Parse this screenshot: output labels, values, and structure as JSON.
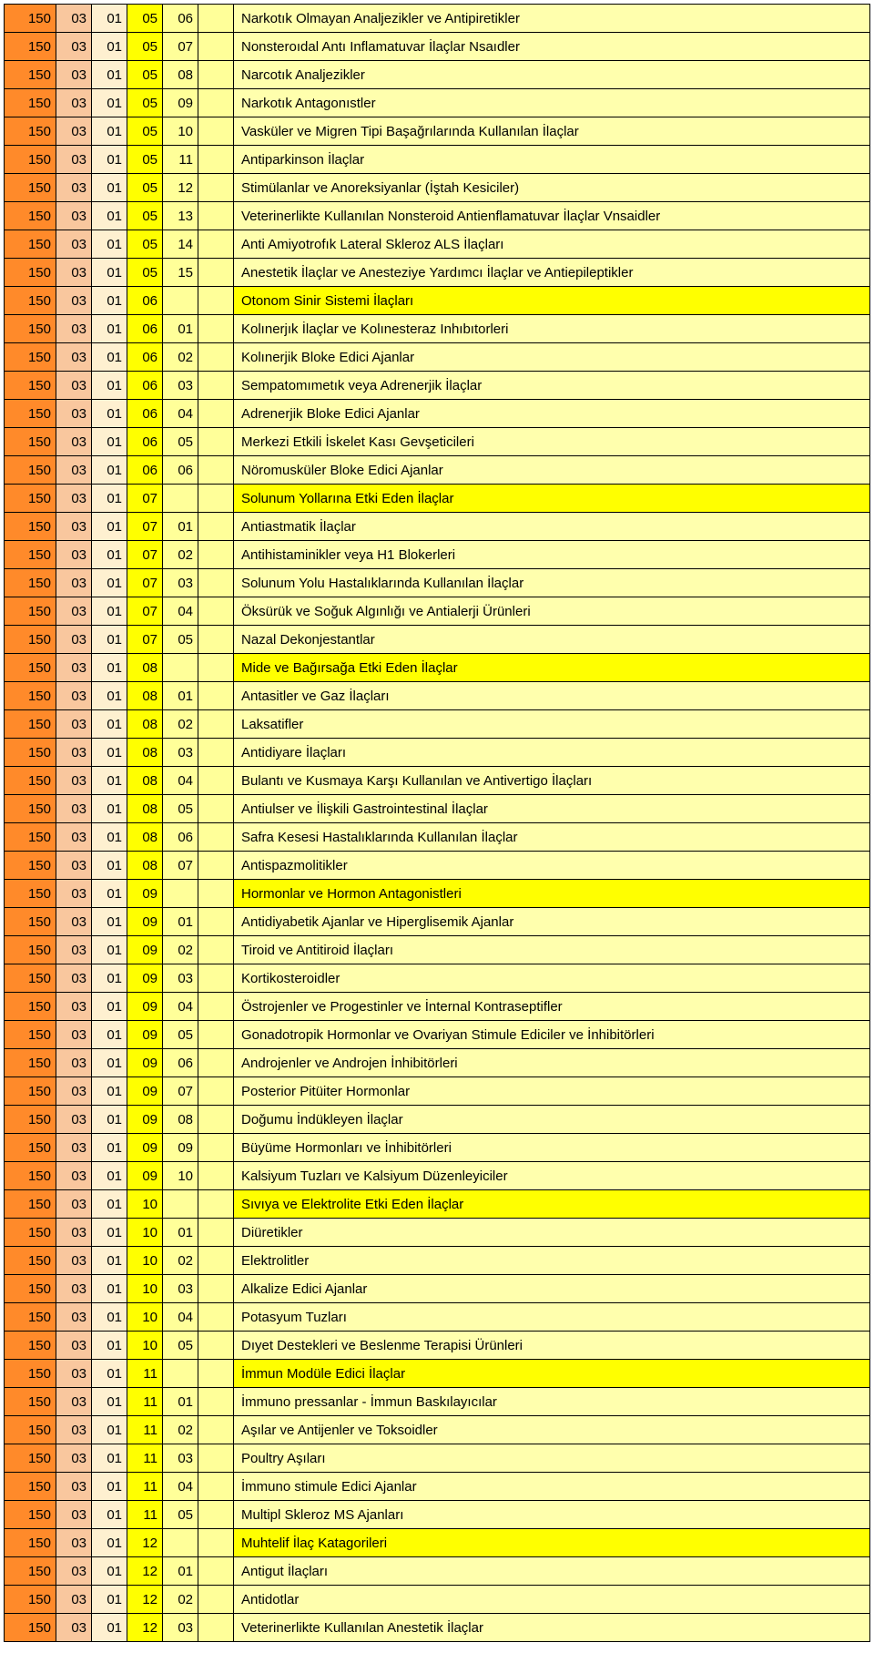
{
  "colors": {
    "c1": "#ff8a2a",
    "c2": "#f9c79e",
    "c3": "#fef0d0",
    "c4": "#ffff00",
    "c5": "#ffff99",
    "c6": "#ffff99",
    "c7": "#ffffad",
    "c7hdr": "#ffff00"
  },
  "rows": [
    {
      "a": "150",
      "b": "03",
      "c": "01",
      "d": "05",
      "e": "06",
      "f": "",
      "g": "Narkotık Olmayan Analjezikler ve Antipiretikler",
      "hdr": false
    },
    {
      "a": "150",
      "b": "03",
      "c": "01",
      "d": "05",
      "e": "07",
      "f": "",
      "g": "Nonsteroıdal Antı Inflamatuvar İlaçlar Nsaıdler",
      "hdr": false
    },
    {
      "a": "150",
      "b": "03",
      "c": "01",
      "d": "05",
      "e": "08",
      "f": "",
      "g": "Narcotık Analjezikler",
      "hdr": false
    },
    {
      "a": "150",
      "b": "03",
      "c": "01",
      "d": "05",
      "e": "09",
      "f": "",
      "g": "Narkotık Antagonıstler",
      "hdr": false
    },
    {
      "a": "150",
      "b": "03",
      "c": "01",
      "d": "05",
      "e": "10",
      "f": "",
      "g": "Vasküler ve Migren Tipi Başağrılarında Kullanılan İlaçlar",
      "hdr": false
    },
    {
      "a": "150",
      "b": "03",
      "c": "01",
      "d": "05",
      "e": "11",
      "f": "",
      "g": "Antiparkinson İlaçlar",
      "hdr": false
    },
    {
      "a": "150",
      "b": "03",
      "c": "01",
      "d": "05",
      "e": "12",
      "f": "",
      "g": "Stimülanlar ve Anoreksiyanlar (İştah Kesiciler)",
      "hdr": false
    },
    {
      "a": "150",
      "b": "03",
      "c": "01",
      "d": "05",
      "e": "13",
      "f": "",
      "g": "Veterinerlikte Kullanılan Nonsteroid Antienflamatuvar İlaçlar Vnsaidler",
      "hdr": false
    },
    {
      "a": "150",
      "b": "03",
      "c": "01",
      "d": "05",
      "e": "14",
      "f": "",
      "g": "Anti Amiyotrofık Lateral Skleroz ALS İlaçları",
      "hdr": false
    },
    {
      "a": "150",
      "b": "03",
      "c": "01",
      "d": "05",
      "e": "15",
      "f": "",
      "g": "Anestetik İlaçlar ve Anesteziye Yardımcı İlaçlar ve Antiepileptikler",
      "hdr": false
    },
    {
      "a": "150",
      "b": "03",
      "c": "01",
      "d": "06",
      "e": "",
      "f": "",
      "g": "Otonom Sinir Sistemi İlaçları",
      "hdr": true
    },
    {
      "a": "150",
      "b": "03",
      "c": "01",
      "d": "06",
      "e": "01",
      "f": "",
      "g": "Kolınerjık İlaçlar ve Kolınesteraz Inhıbıtorleri",
      "hdr": false
    },
    {
      "a": "150",
      "b": "03",
      "c": "01",
      "d": "06",
      "e": "02",
      "f": "",
      "g": "Kolınerjik Bloke Edici Ajanlar",
      "hdr": false
    },
    {
      "a": "150",
      "b": "03",
      "c": "01",
      "d": "06",
      "e": "03",
      "f": "",
      "g": "Sempatomımetık veya Adrenerjik İlaçlar",
      "hdr": false
    },
    {
      "a": "150",
      "b": "03",
      "c": "01",
      "d": "06",
      "e": "04",
      "f": "",
      "g": "Adrenerjik Bloke Edici Ajanlar",
      "hdr": false
    },
    {
      "a": "150",
      "b": "03",
      "c": "01",
      "d": "06",
      "e": "05",
      "f": "",
      "g": "Merkezi Etkili İskelet Kası Gevşeticileri",
      "hdr": false
    },
    {
      "a": "150",
      "b": "03",
      "c": "01",
      "d": "06",
      "e": "06",
      "f": "",
      "g": "Nöromusküler Bloke Edici Ajanlar",
      "hdr": false
    },
    {
      "a": "150",
      "b": "03",
      "c": "01",
      "d": "07",
      "e": "",
      "f": "",
      "g": "Solunum Yollarına Etki Eden İlaçlar",
      "hdr": true
    },
    {
      "a": "150",
      "b": "03",
      "c": "01",
      "d": "07",
      "e": "01",
      "f": "",
      "g": "Antiastmatik İlaçlar",
      "hdr": false
    },
    {
      "a": "150",
      "b": "03",
      "c": "01",
      "d": "07",
      "e": "02",
      "f": "",
      "g": "Antihistaminikler veya H1 Blokerleri",
      "hdr": false
    },
    {
      "a": "150",
      "b": "03",
      "c": "01",
      "d": "07",
      "e": "03",
      "f": "",
      "g": "Solunum Yolu Hastalıklarında Kullanılan İlaçlar",
      "hdr": false
    },
    {
      "a": "150",
      "b": "03",
      "c": "01",
      "d": "07",
      "e": "04",
      "f": "",
      "g": "Öksürük ve Soğuk Algınlığı ve Antialerji Ürünleri",
      "hdr": false
    },
    {
      "a": "150",
      "b": "03",
      "c": "01",
      "d": "07",
      "e": "05",
      "f": "",
      "g": "Nazal Dekonjestantlar",
      "hdr": false
    },
    {
      "a": "150",
      "b": "03",
      "c": "01",
      "d": "08",
      "e": "",
      "f": "",
      "g": "Mide ve Bağırsağa Etki Eden İlaçlar",
      "hdr": true
    },
    {
      "a": "150",
      "b": "03",
      "c": "01",
      "d": "08",
      "e": "01",
      "f": "",
      "g": "Antasitler ve Gaz İlaçları",
      "hdr": false
    },
    {
      "a": "150",
      "b": "03",
      "c": "01",
      "d": "08",
      "e": "02",
      "f": "",
      "g": "Laksatifler",
      "hdr": false
    },
    {
      "a": "150",
      "b": "03",
      "c": "01",
      "d": "08",
      "e": "03",
      "f": "",
      "g": "Antidiyare İlaçları",
      "hdr": false
    },
    {
      "a": "150",
      "b": "03",
      "c": "01",
      "d": "08",
      "e": "04",
      "f": "",
      "g": "Bulantı ve Kusmaya Karşı Kullanılan ve Antivertigo İlaçları",
      "hdr": false
    },
    {
      "a": "150",
      "b": "03",
      "c": "01",
      "d": "08",
      "e": "05",
      "f": "",
      "g": "Antiulser ve İlişkili Gastrointestinal İlaçlar",
      "hdr": false
    },
    {
      "a": "150",
      "b": "03",
      "c": "01",
      "d": "08",
      "e": "06",
      "f": "",
      "g": "Safra Kesesi Hastalıklarında Kullanılan İlaçlar",
      "hdr": false
    },
    {
      "a": "150",
      "b": "03",
      "c": "01",
      "d": "08",
      "e": "07",
      "f": "",
      "g": "Antispazmolitikler",
      "hdr": false
    },
    {
      "a": "150",
      "b": "03",
      "c": "01",
      "d": "09",
      "e": "",
      "f": "",
      "g": "Hormonlar ve Hormon Antagonistleri",
      "hdr": true
    },
    {
      "a": "150",
      "b": "03",
      "c": "01",
      "d": "09",
      "e": "01",
      "f": "",
      "g": "Antidiyabetik Ajanlar ve Hiperglisemik Ajanlar",
      "hdr": false
    },
    {
      "a": "150",
      "b": "03",
      "c": "01",
      "d": "09",
      "e": "02",
      "f": "",
      "g": "Tiroid ve Antitiroid İlaçları",
      "hdr": false
    },
    {
      "a": "150",
      "b": "03",
      "c": "01",
      "d": "09",
      "e": "03",
      "f": "",
      "g": "Kortikosteroidler",
      "hdr": false
    },
    {
      "a": "150",
      "b": "03",
      "c": "01",
      "d": "09",
      "e": "04",
      "f": "",
      "g": "Östrojenler ve Progestinler ve İnternal Kontraseptifler",
      "hdr": false
    },
    {
      "a": "150",
      "b": "03",
      "c": "01",
      "d": "09",
      "e": "05",
      "f": "",
      "g": "Gonadotropik Hormonlar ve Ovariyan Stimule Ediciler ve İnhibitörleri",
      "hdr": false
    },
    {
      "a": "150",
      "b": "03",
      "c": "01",
      "d": "09",
      "e": "06",
      "f": "",
      "g": "Androjenler ve Androjen İnhibitörleri",
      "hdr": false
    },
    {
      "a": "150",
      "b": "03",
      "c": "01",
      "d": "09",
      "e": "07",
      "f": "",
      "g": "Posterior Pitüiter Hormonlar",
      "hdr": false
    },
    {
      "a": "150",
      "b": "03",
      "c": "01",
      "d": "09",
      "e": "08",
      "f": "",
      "g": "Doğumu İndükleyen İlaçlar",
      "hdr": false
    },
    {
      "a": "150",
      "b": "03",
      "c": "01",
      "d": "09",
      "e": "09",
      "f": "",
      "g": "Büyüme Hormonları ve İnhibitörleri",
      "hdr": false
    },
    {
      "a": "150",
      "b": "03",
      "c": "01",
      "d": "09",
      "e": "10",
      "f": "",
      "g": "Kalsiyum Tuzları ve Kalsiyum Düzenleyiciler",
      "hdr": false
    },
    {
      "a": "150",
      "b": "03",
      "c": "01",
      "d": "10",
      "e": "",
      "f": "",
      "g": "Sıvıya ve Elektrolite Etki Eden İlaçlar",
      "hdr": true
    },
    {
      "a": "150",
      "b": "03",
      "c": "01",
      "d": "10",
      "e": "01",
      "f": "",
      "g": "Diüretikler",
      "hdr": false
    },
    {
      "a": "150",
      "b": "03",
      "c": "01",
      "d": "10",
      "e": "02",
      "f": "",
      "g": "Elektrolitler",
      "hdr": false
    },
    {
      "a": "150",
      "b": "03",
      "c": "01",
      "d": "10",
      "e": "03",
      "f": "",
      "g": "Alkalize Edici Ajanlar",
      "hdr": false
    },
    {
      "a": "150",
      "b": "03",
      "c": "01",
      "d": "10",
      "e": "04",
      "f": "",
      "g": "Potasyum Tuzları",
      "hdr": false
    },
    {
      "a": "150",
      "b": "03",
      "c": "01",
      "d": "10",
      "e": "05",
      "f": "",
      "g": "Dıyet Destekleri ve Beslenme Terapisi Ürünleri",
      "hdr": false
    },
    {
      "a": "150",
      "b": "03",
      "c": "01",
      "d": "11",
      "e": "",
      "f": "",
      "g": "İmmun Modüle Edici İlaçlar",
      "hdr": true
    },
    {
      "a": "150",
      "b": "03",
      "c": "01",
      "d": "11",
      "e": "01",
      "f": "",
      "g": "İmmuno pressanlar - İmmun Baskılayıcılar",
      "hdr": false
    },
    {
      "a": "150",
      "b": "03",
      "c": "01",
      "d": "11",
      "e": "02",
      "f": "",
      "g": "Aşılar ve Antijenler ve Toksoidler",
      "hdr": false
    },
    {
      "a": "150",
      "b": "03",
      "c": "01",
      "d": "11",
      "e": "03",
      "f": "",
      "g": "Poultry Aşıları",
      "hdr": false
    },
    {
      "a": "150",
      "b": "03",
      "c": "01",
      "d": "11",
      "e": "04",
      "f": "",
      "g": "İmmuno stimule Edici Ajanlar",
      "hdr": false
    },
    {
      "a": "150",
      "b": "03",
      "c": "01",
      "d": "11",
      "e": "05",
      "f": "",
      "g": "Multipl Skleroz MS Ajanları",
      "hdr": false
    },
    {
      "a": "150",
      "b": "03",
      "c": "01",
      "d": "12",
      "e": "",
      "f": "",
      "g": "Muhtelif İlaç Katagorileri",
      "hdr": true
    },
    {
      "a": "150",
      "b": "03",
      "c": "01",
      "d": "12",
      "e": "01",
      "f": "",
      "g": "Antigut İlaçları",
      "hdr": false
    },
    {
      "a": "150",
      "b": "03",
      "c": "01",
      "d": "12",
      "e": "02",
      "f": "",
      "g": "Antidotlar",
      "hdr": false
    },
    {
      "a": "150",
      "b": "03",
      "c": "01",
      "d": "12",
      "e": "03",
      "f": "",
      "g": "Veterinerlikte Kullanılan Anestetik İlaçlar",
      "hdr": false
    }
  ]
}
